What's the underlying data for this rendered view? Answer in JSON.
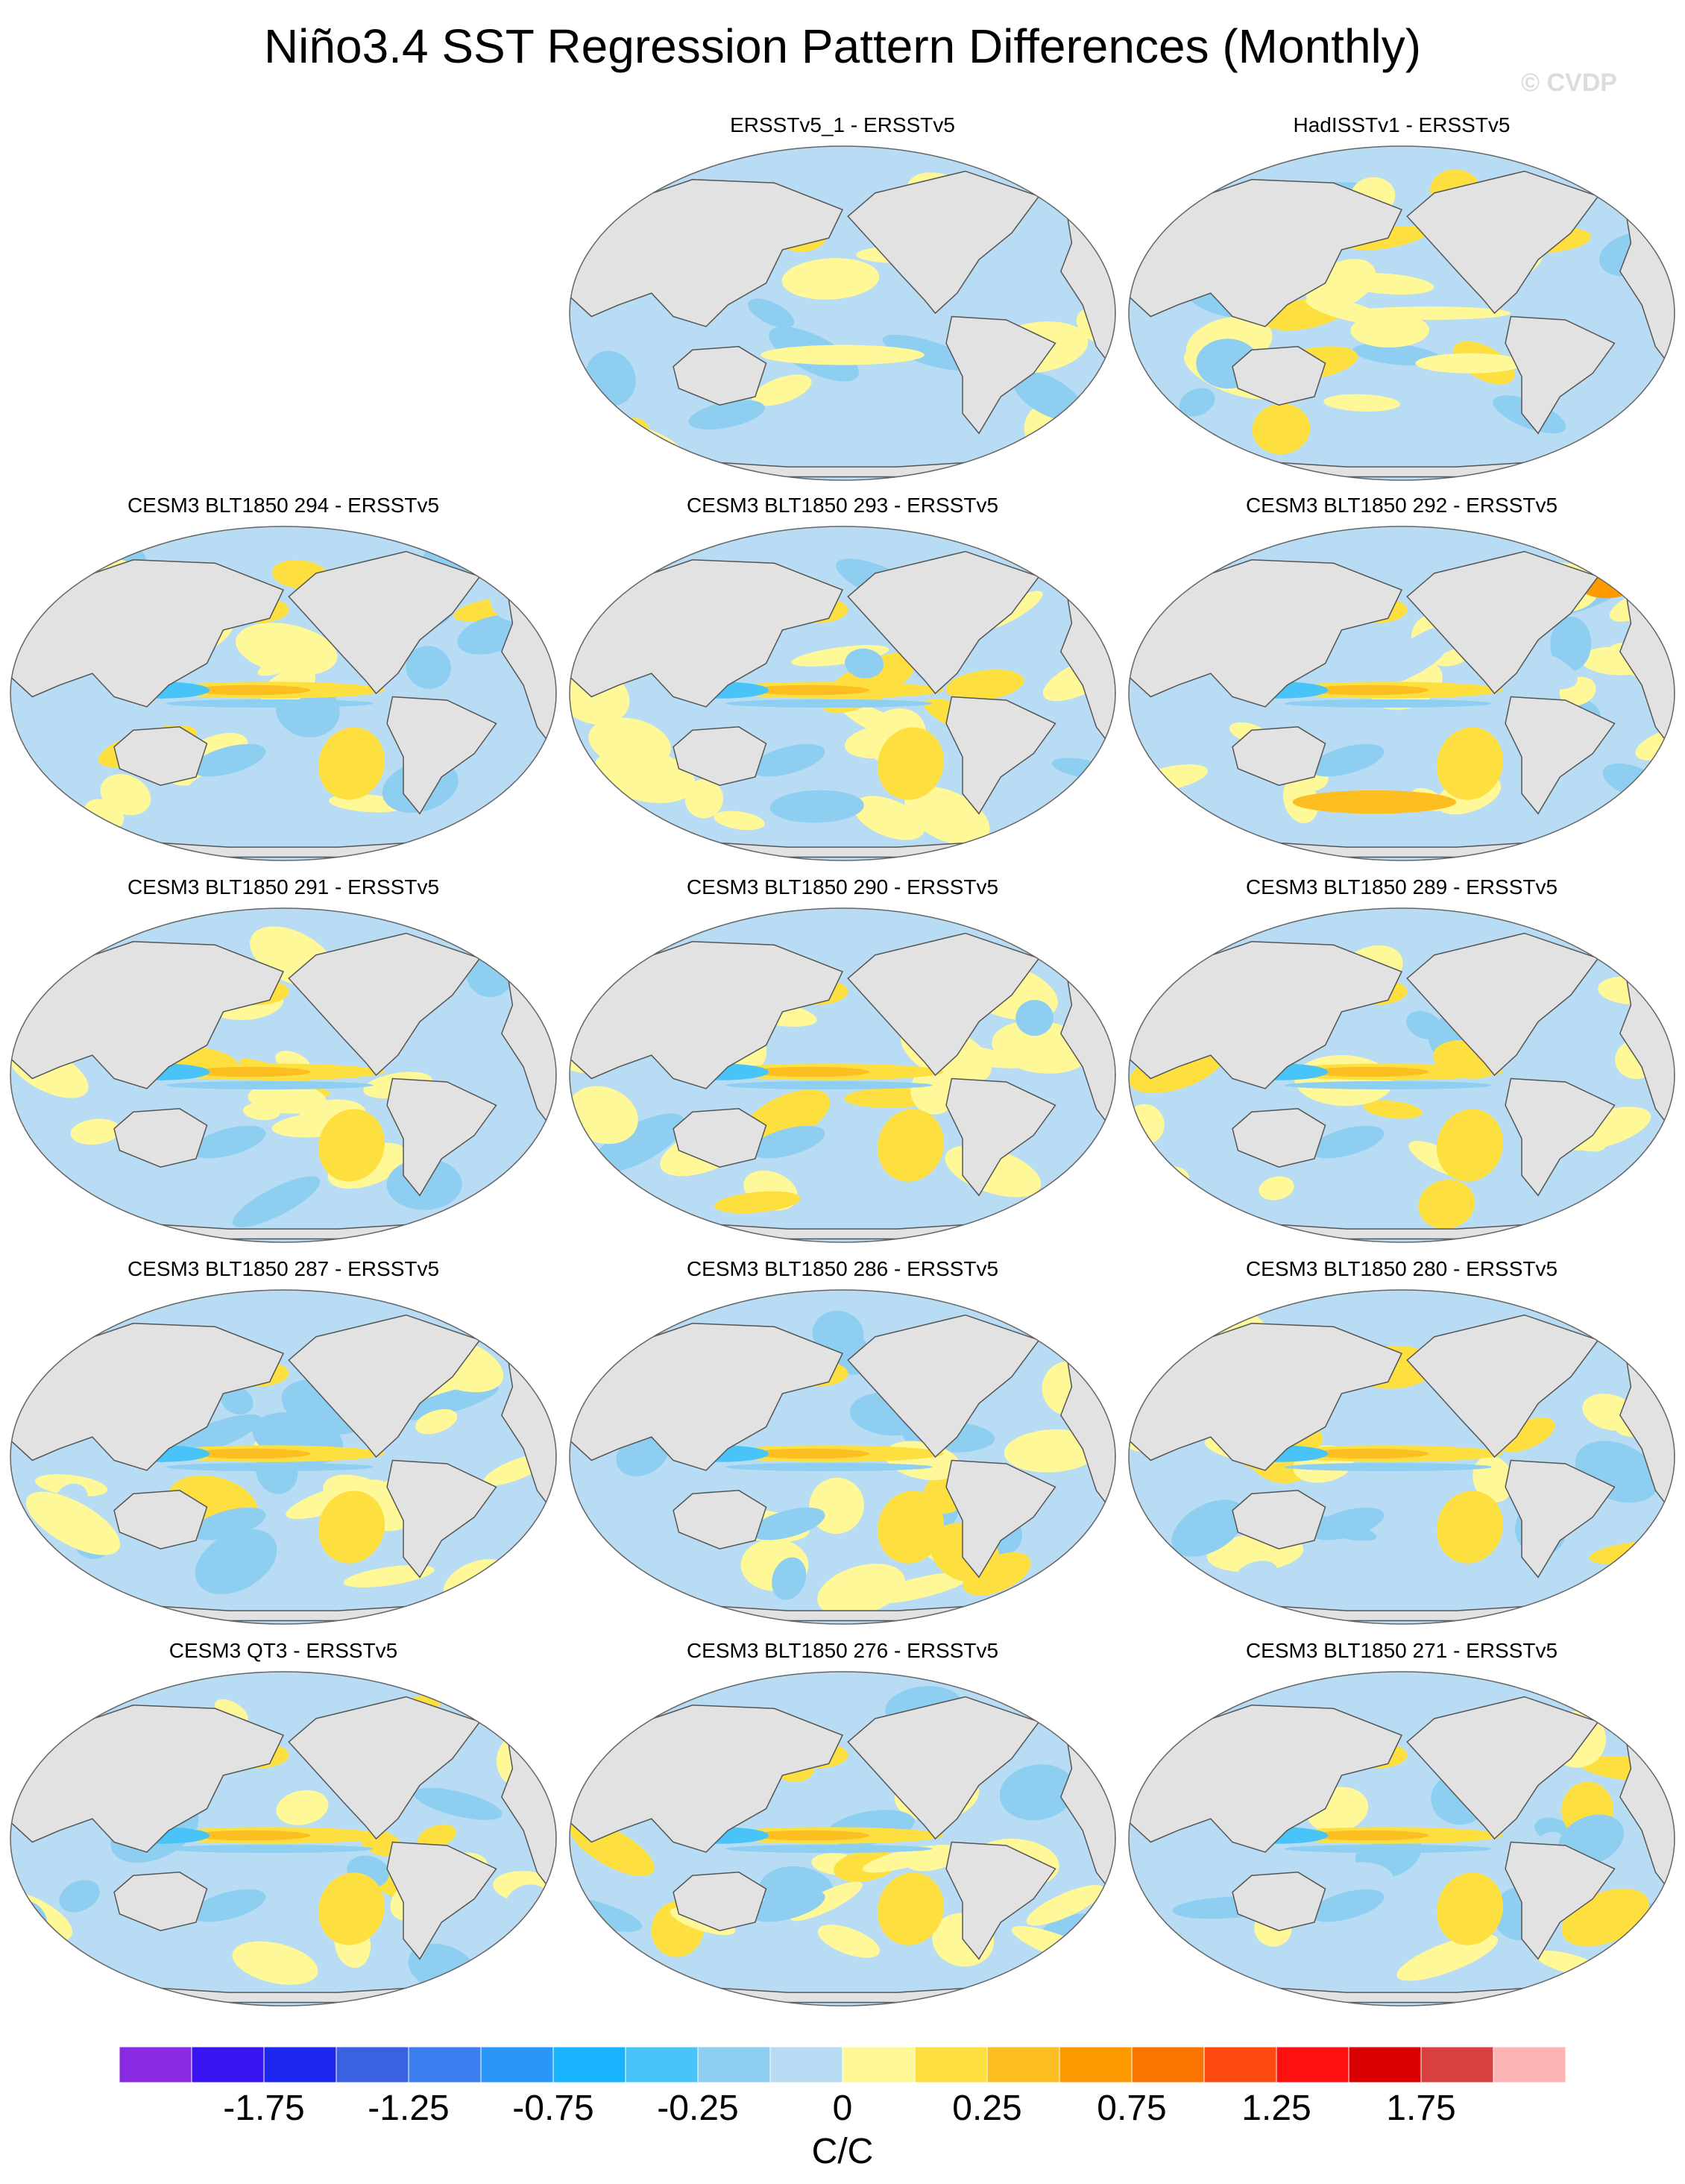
{
  "title": "Niño3.4 SST Regression Pattern Differences (Monthly)",
  "watermark": "© CVDP",
  "units": "C/C",
  "panels": [
    {
      "title": "ERSSTv5_1 - ERSSTv5",
      "row": 0,
      "col": 1,
      "pattern": "mild"
    },
    {
      "title": "HadISSTv1 - ERSSTv5",
      "row": 0,
      "col": 2,
      "pattern": "mixed"
    },
    {
      "title": "CESM3 BLT1850 294 - ERSSTv5",
      "row": 1,
      "col": 0,
      "pattern": "enso"
    },
    {
      "title": "CESM3 BLT1850 293 - ERSSTv5",
      "row": 1,
      "col": 1,
      "pattern": "enso"
    },
    {
      "title": "CESM3 BLT1850 292 - ERSSTv5",
      "row": 1,
      "col": 2,
      "pattern": "strong"
    },
    {
      "title": "CESM3 BLT1850 291 - ERSSTv5",
      "row": 2,
      "col": 0,
      "pattern": "enso"
    },
    {
      "title": "CESM3 BLT1850 290 - ERSSTv5",
      "row": 2,
      "col": 1,
      "pattern": "enso"
    },
    {
      "title": "CESM3 BLT1850 289 - ERSSTv5",
      "row": 2,
      "col": 2,
      "pattern": "enso"
    },
    {
      "title": "CESM3 BLT1850 287 - ERSSTv5",
      "row": 3,
      "col": 0,
      "pattern": "enso"
    },
    {
      "title": "CESM3 BLT1850 286 - ERSSTv5",
      "row": 3,
      "col": 1,
      "pattern": "enso"
    },
    {
      "title": "CESM3 BLT1850 280 - ERSSTv5",
      "row": 3,
      "col": 2,
      "pattern": "enso"
    },
    {
      "title": "CESM3 QT3 - ERSSTv5",
      "row": 4,
      "col": 0,
      "pattern": "enso"
    },
    {
      "title": "CESM3 BLT1850 276 - ERSSTv5",
      "row": 4,
      "col": 1,
      "pattern": "enso"
    },
    {
      "title": "CESM3 BLT1850 271 - ERSSTv5",
      "row": 4,
      "col": 2,
      "pattern": "enso"
    }
  ],
  "colorbar": {
    "colors": [
      "#8a2be2",
      "#3a14f0",
      "#1c28f0",
      "#3a62e0",
      "#3a7ef0",
      "#2a96f8",
      "#18b4ff",
      "#48c4f8",
      "#8ecef0",
      "#b8dcf4",
      "#fff898",
      "#fde040",
      "#fcbe20",
      "#fc9a00",
      "#fc7400",
      "#fc4a10",
      "#fc1010",
      "#d80000",
      "#d84040",
      "#fcb4b4"
    ],
    "labels": [
      "-1.75",
      "-1.25",
      "-0.75",
      "-0.25",
      "0",
      "0.25",
      "0.75",
      "1.25",
      "1.75"
    ]
  }
}
